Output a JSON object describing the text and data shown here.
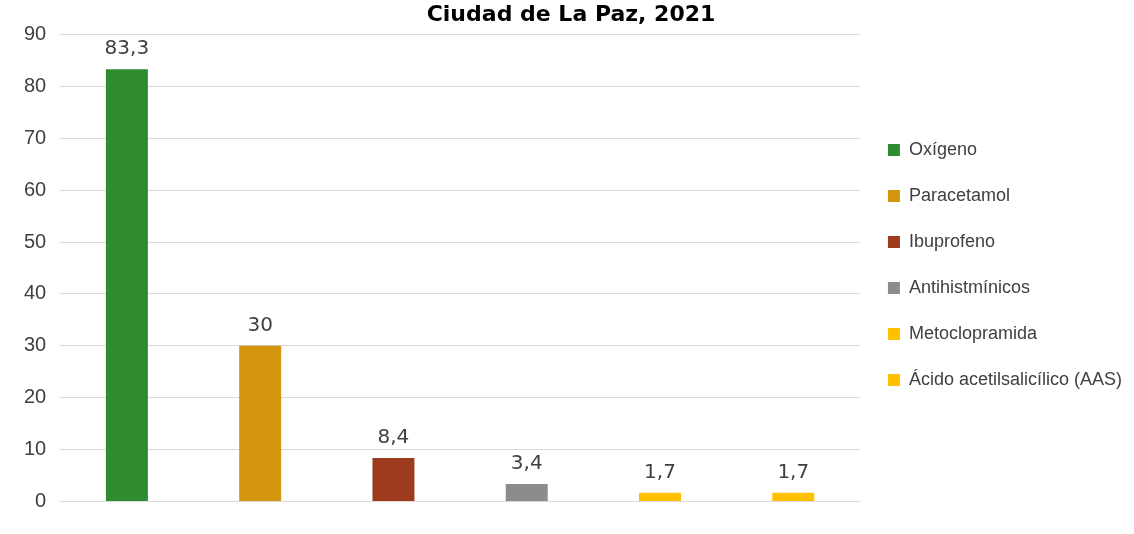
{
  "chart_data": {
    "type": "bar",
    "title": "Ciudad de La Paz, 2021",
    "categories": [
      null,
      null,
      null,
      null,
      null,
      null
    ],
    "series": [
      {
        "name": "Oxígeno",
        "color": "#2e8b30",
        "values": [
          83.3,
          null,
          null,
          null,
          null,
          null
        ],
        "value_labels": [
          "83,3",
          null,
          null,
          null,
          null,
          null
        ]
      },
      {
        "name": "Paracetamol",
        "color": "#d4960c",
        "values": [
          null,
          30,
          null,
          null,
          null,
          null
        ],
        "value_labels": [
          null,
          "30",
          null,
          null,
          null,
          null
        ]
      },
      {
        "name": "Ibuprofeno",
        "color": "#9e3b1e",
        "values": [
          null,
          null,
          8.4,
          null,
          null,
          null
        ],
        "value_labels": [
          null,
          null,
          "8,4",
          null,
          null,
          null
        ]
      },
      {
        "name": "Antihistmínicos",
        "color": "#8c8c8c",
        "values": [
          null,
          null,
          null,
          3.4,
          null,
          null
        ],
        "value_labels": [
          null,
          null,
          null,
          "3,4",
          null,
          null
        ]
      },
      {
        "name": "Metoclopramida",
        "color": "#ffc000",
        "values": [
          null,
          null,
          null,
          null,
          1.7,
          null
        ],
        "value_labels": [
          null,
          null,
          null,
          null,
          "1,7",
          null
        ]
      },
      {
        "name": "Ácido acetilsalicílico (AAS)",
        "color": "#ffc000",
        "values": [
          null,
          null,
          null,
          null,
          null,
          1.7
        ],
        "value_labels": [
          null,
          null,
          null,
          null,
          null,
          "1,7"
        ]
      }
    ],
    "ylim": [
      0,
      90
    ],
    "yticks": [
      0,
      10,
      20,
      30,
      40,
      50,
      60,
      70,
      80,
      90
    ],
    "grid": "y",
    "legend": "right"
  }
}
